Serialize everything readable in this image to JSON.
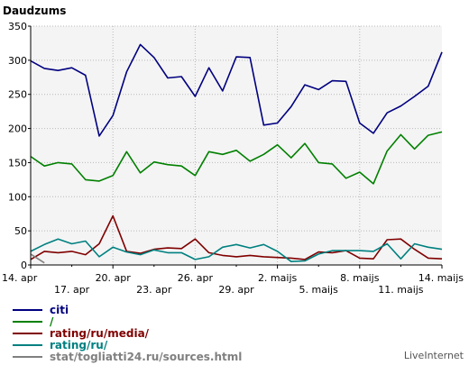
{
  "chart_data": {
    "type": "line",
    "title": "Daudzums",
    "xlabel": "",
    "ylabel": "",
    "ylim": [
      0,
      350
    ],
    "yticks": [
      0,
      50,
      100,
      150,
      200,
      250,
      300,
      350
    ],
    "grid": true,
    "legend_position": "bottom-left",
    "x": [
      "14. apr",
      "15. apr",
      "16. apr",
      "17. apr",
      "18. apr",
      "19. apr",
      "20. apr",
      "21. apr",
      "22. apr",
      "23. apr",
      "24. apr",
      "25. apr",
      "26. apr",
      "27. apr",
      "28. apr",
      "29. apr",
      "30. apr",
      "1. maijs",
      "2. maijs",
      "3. maijs",
      "4. maijs",
      "5. maijs",
      "6. maijs",
      "7. maijs",
      "8. maijs",
      "9. maijs",
      "10. maijs",
      "11. maijs",
      "12. maijs",
      "13. maijs",
      "14. maijs"
    ],
    "x_tick_labels_row1": [
      {
        "index": 0,
        "label": "14. apr"
      },
      {
        "index": 6,
        "label": "20. apr"
      },
      {
        "index": 12,
        "label": "26. apr"
      },
      {
        "index": 18,
        "label": "2. maijs"
      },
      {
        "index": 24,
        "label": "8. maijs"
      },
      {
        "index": 30,
        "label": "14. maijs"
      }
    ],
    "x_tick_labels_row2": [
      {
        "index": 3,
        "label": "17. apr"
      },
      {
        "index": 9,
        "label": "23. apr"
      },
      {
        "index": 15,
        "label": "29. apr"
      },
      {
        "index": 21,
        "label": "5. maijs"
      },
      {
        "index": 27,
        "label": "11. maijs"
      }
    ],
    "series": [
      {
        "name": "citi",
        "color": "#000080",
        "values": [
          299,
          288,
          285,
          289,
          278,
          189,
          219,
          283,
          323,
          304,
          274,
          276,
          247,
          289,
          255,
          305,
          304,
          205,
          208,
          232,
          264,
          257,
          270,
          269,
          208,
          193,
          223,
          233,
          247,
          262,
          312
        ]
      },
      {
        "name": "/",
        "color": "#008000",
        "values": [
          159,
          145,
          150,
          148,
          125,
          123,
          131,
          166,
          135,
          151,
          147,
          145,
          131,
          166,
          162,
          168,
          152,
          162,
          176,
          157,
          178,
          150,
          148,
          127,
          136,
          119,
          167,
          191,
          170,
          190,
          195
        ]
      },
      {
        "name": "rating/ru/media/",
        "color": "#800000",
        "values": [
          8,
          20,
          18,
          20,
          15,
          31,
          72,
          20,
          17,
          23,
          25,
          24,
          38,
          18,
          14,
          12,
          14,
          12,
          11,
          10,
          8,
          19,
          18,
          21,
          10,
          9,
          37,
          38,
          23,
          10,
          9
        ]
      },
      {
        "name": "rating/ru/",
        "color": "#008080",
        "values": [
          20,
          30,
          38,
          31,
          35,
          12,
          26,
          19,
          15,
          22,
          18,
          18,
          8,
          12,
          26,
          30,
          25,
          30,
          20,
          5,
          6,
          16,
          21,
          21,
          21,
          20,
          31,
          9,
          31,
          26,
          23
        ]
      },
      {
        "name": "stat/togliatti24.ru/sources.html",
        "color": "#808080",
        "values": [
          16,
          3,
          null,
          null,
          null,
          null,
          null,
          null,
          null,
          null,
          null,
          null,
          null,
          null,
          null,
          null,
          null,
          null,
          null,
          null,
          null,
          null,
          null,
          null,
          null,
          null,
          null,
          null,
          null,
          null,
          null
        ]
      }
    ]
  },
  "brand": "LiveInternet"
}
